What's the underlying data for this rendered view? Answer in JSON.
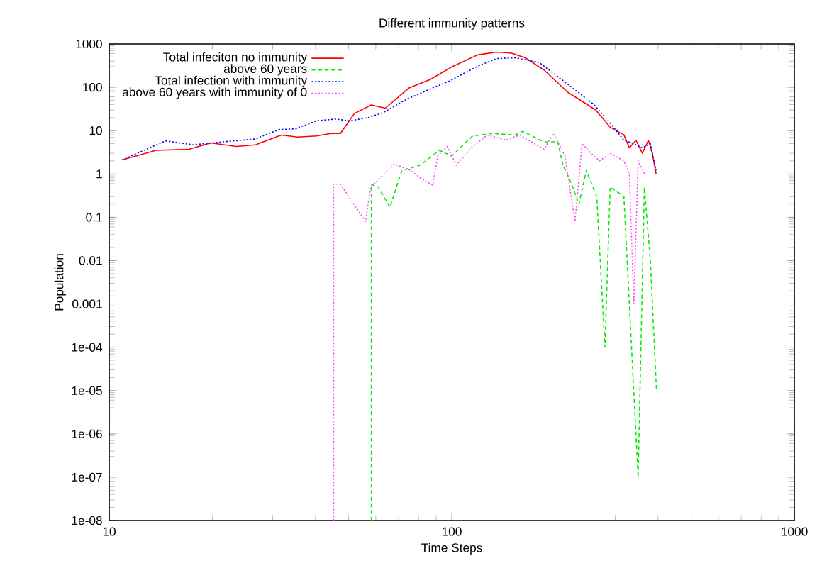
{
  "chart_data": {
    "type": "line",
    "title": "Different immunity patterns",
    "xlabel": "Time Steps",
    "ylabel": "Population",
    "log": "xy",
    "grid": false,
    "legend": "top left",
    "marker": "none",
    "xlim": [
      10,
      1000
    ],
    "xticks": [
      10,
      100,
      1000
    ],
    "ylim": [
      1e-08,
      1000
    ],
    "yticks": [
      {
        "value": 1e-08,
        "label": "1e-08"
      },
      {
        "value": 1e-07,
        "label": "1e-07"
      },
      {
        "value": 1e-06,
        "label": "1e-06"
      },
      {
        "value": 1e-05,
        "label": "1e-05"
      },
      {
        "value": 0.0001,
        "label": "1e-04"
      },
      0.001,
      0.01,
      0.1,
      1,
      10,
      100,
      1000
    ],
    "series": [
      {
        "name": "Total infeciton no immunity",
        "color": "#ff0000",
        "line_style": "solid",
        "x": [
          10.9,
          13.7,
          17.1,
          19.8,
          23.5,
          26.7,
          31.8,
          35.5,
          40.3,
          44.3,
          47.3,
          52,
          58.2,
          64,
          75.1,
          86.6,
          99.8,
          119,
          135,
          149,
          164,
          186,
          218,
          263,
          290,
          318,
          330,
          345,
          360,
          375,
          385,
          395
        ],
        "values": [
          2.1,
          3.5,
          3.7,
          5.2,
          4.3,
          4.7,
          7.9,
          7.1,
          7.5,
          8.6,
          8.6,
          25,
          39,
          33,
          97,
          152,
          293,
          560,
          650,
          620,
          480,
          250,
          77,
          30,
          12,
          8,
          4,
          6,
          3,
          6,
          3,
          1
        ]
      },
      {
        "name": "above 60  years",
        "color": "#00ee00",
        "line_style": "dashed",
        "x": [
          58.2,
          58.2,
          61,
          66,
          71.5,
          81,
          92,
          100,
          115,
          131,
          153,
          161,
          186,
          204,
          211,
          224,
          235,
          247,
          265,
          280,
          290,
          318,
          350,
          365,
          380,
          396
        ],
        "values": [
          1e-08,
          0.58,
          0.5,
          0.17,
          1.2,
          1.6,
          3.5,
          2.6,
          7.5,
          8.6,
          7.9,
          9.6,
          5.5,
          5.5,
          1.6,
          0.58,
          0.2,
          1.2,
          0.3,
          0.0001,
          0.5,
          0.3,
          1e-07,
          0.5,
          0.01,
          1e-05
        ]
      },
      {
        "name": "Total infection with immunity",
        "color": "#0000ff",
        "line_style": "dotted",
        "x": [
          10.9,
          14.6,
          17.6,
          21.4,
          26.7,
          31.3,
          35,
          40.3,
          45.8,
          50.5,
          57,
          63,
          73.9,
          86.6,
          98,
          119,
          135,
          153,
          180,
          218,
          260,
          290,
          318,
          340,
          360,
          380,
          395
        ],
        "values": [
          2.1,
          5.8,
          4.7,
          5.5,
          6.4,
          10.6,
          11,
          16.8,
          18.5,
          16.8,
          20,
          26,
          53,
          92,
          137,
          306,
          460,
          480,
          375,
          118,
          40,
          15,
          6,
          5,
          4,
          5,
          1.2
        ]
      },
      {
        "name": "above 60 years with immunity of 0",
        "color": "#ff44ff",
        "line_style": "dotted",
        "x": [
          45.2,
          45.2,
          47.3,
          56,
          58,
          68,
          76,
          81,
          88,
          91,
          97,
          103,
          115,
          127,
          144,
          158,
          186,
          198,
          214,
          229,
          240,
          255,
          270,
          290,
          318,
          330,
          340,
          350,
          366
        ],
        "values": [
          1e-08,
          0.58,
          0.58,
          0.08,
          0.5,
          1.7,
          1.2,
          0.8,
          0.55,
          2.6,
          4.3,
          1.6,
          4.3,
          7.9,
          6.1,
          7.9,
          3.7,
          8.6,
          2.6,
          0.08,
          5,
          3,
          2,
          3,
          2,
          1,
          0.001,
          2,
          1
        ]
      }
    ]
  }
}
